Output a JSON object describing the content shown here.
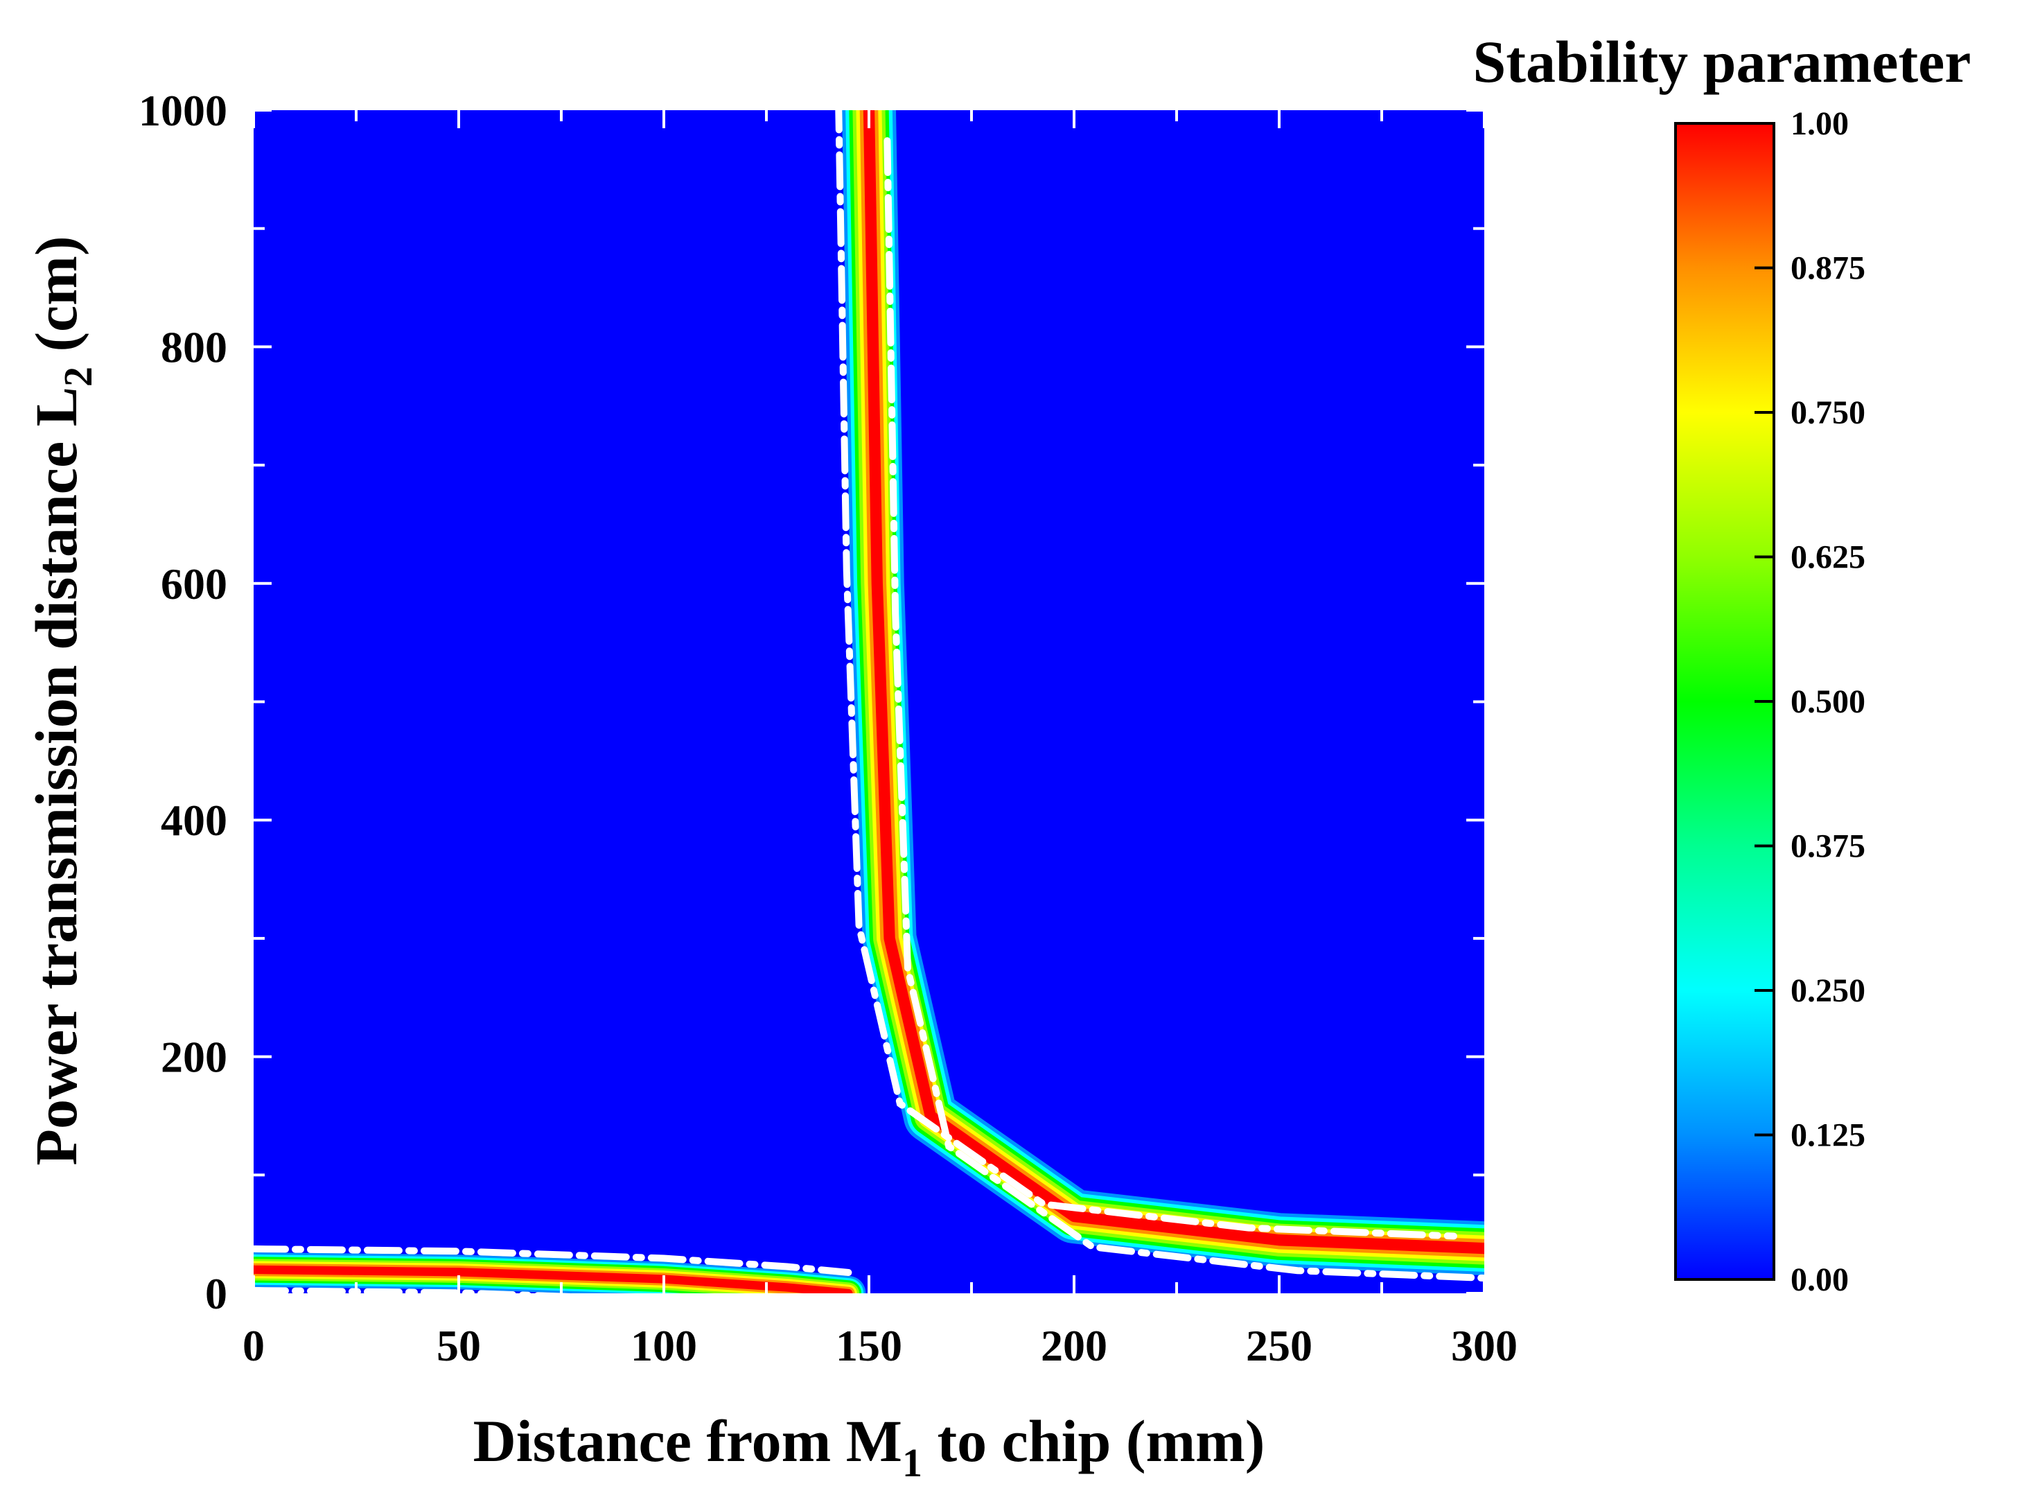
{
  "chart_data": {
    "type": "heatmap",
    "subtype": "contour",
    "title": "",
    "xlabel": {
      "pre": "Distance from M",
      "sub": "1",
      "post": " to chip (mm)"
    },
    "ylabel": {
      "pre": "Power transmission distance L",
      "sub": "2",
      "post": " (cm)"
    },
    "xlim": [
      0,
      300
    ],
    "ylim": [
      0,
      1000
    ],
    "xticks": [
      "0",
      "50",
      "100",
      "150",
      "200",
      "250",
      "300"
    ],
    "yticks": [
      "0",
      "200",
      "400",
      "600",
      "800",
      "1000"
    ],
    "colorbar": {
      "title": "Stability parameter",
      "range": [
        0,
        1
      ],
      "ticks": [
        "0.00",
        "0.125",
        "0.250",
        "0.375",
        "0.500",
        "0.625",
        "0.750",
        "0.875",
        "1.00"
      ],
      "colors": [
        "#0000ff",
        "#0090ff",
        "#00ffff",
        "#00ff90",
        "#00ff00",
        "#90ff00",
        "#ffff00",
        "#ff9000",
        "#ff0000"
      ]
    },
    "background_value": 0.0,
    "boundary_style": "white dash-dot",
    "regions": [
      {
        "name": "vertical-hyperbolic-band",
        "description": "stable band near x = 150 mm bending toward L2 ≈ 35-45 cm at large x",
        "asymptote_x": 149,
        "centerline": [
          [
            150,
            1000
          ],
          [
            152,
            600
          ],
          [
            155,
            300
          ],
          [
            165,
            150
          ],
          [
            200,
            65
          ],
          [
            250,
            45
          ],
          [
            300,
            38
          ]
        ],
        "peak_value": 1.0
      },
      {
        "name": "lower-horizontal-band",
        "description": "thin stable band along the bottom from x = 0 to about 145 mm",
        "centerline": [
          [
            0,
            20
          ],
          [
            50,
            18
          ],
          [
            100,
            12
          ],
          [
            130,
            5
          ],
          [
            145,
            0
          ]
        ],
        "peak_value": 1.0
      }
    ]
  }
}
